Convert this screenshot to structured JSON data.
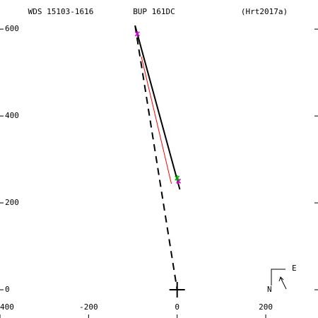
{
  "chart_data": {
    "type": "orbit",
    "title": "WDS 15103-1616",
    "subtitle": "BUP 161DC",
    "reference": "(Hrt2017a)",
    "compass": {
      "east": "E",
      "north": "N"
    },
    "xlim": [
      -400,
      318
    ],
    "ylim": [
      -65,
      667
    ],
    "xticks": [
      {
        "value": -400,
        "label": "400"
      },
      -200,
      0,
      200
    ],
    "yticks": [
      0,
      200,
      400,
      600
    ],
    "lines": [
      {
        "color": "#000000",
        "style": "solid",
        "width": 2,
        "x": [
          -95,
          6
        ],
        "y": [
          608,
          231
        ]
      },
      {
        "color": "#ff0000",
        "style": "solid",
        "width": 1,
        "x": [
          -81,
          -13
        ],
        "y": [
          537,
          244
        ]
      },
      {
        "color": "#000000",
        "style": "dashed",
        "width": 2,
        "x": [
          -95,
          0
        ],
        "y": [
          608,
          0
        ]
      }
    ],
    "points": [
      {
        "color": "#cc00cc",
        "x": -90,
        "y": 589
      },
      {
        "color": "#cc00cc",
        "x": 3,
        "y": 250
      },
      {
        "color": "#00aa00",
        "x": 0,
        "y": 257
      }
    ]
  }
}
